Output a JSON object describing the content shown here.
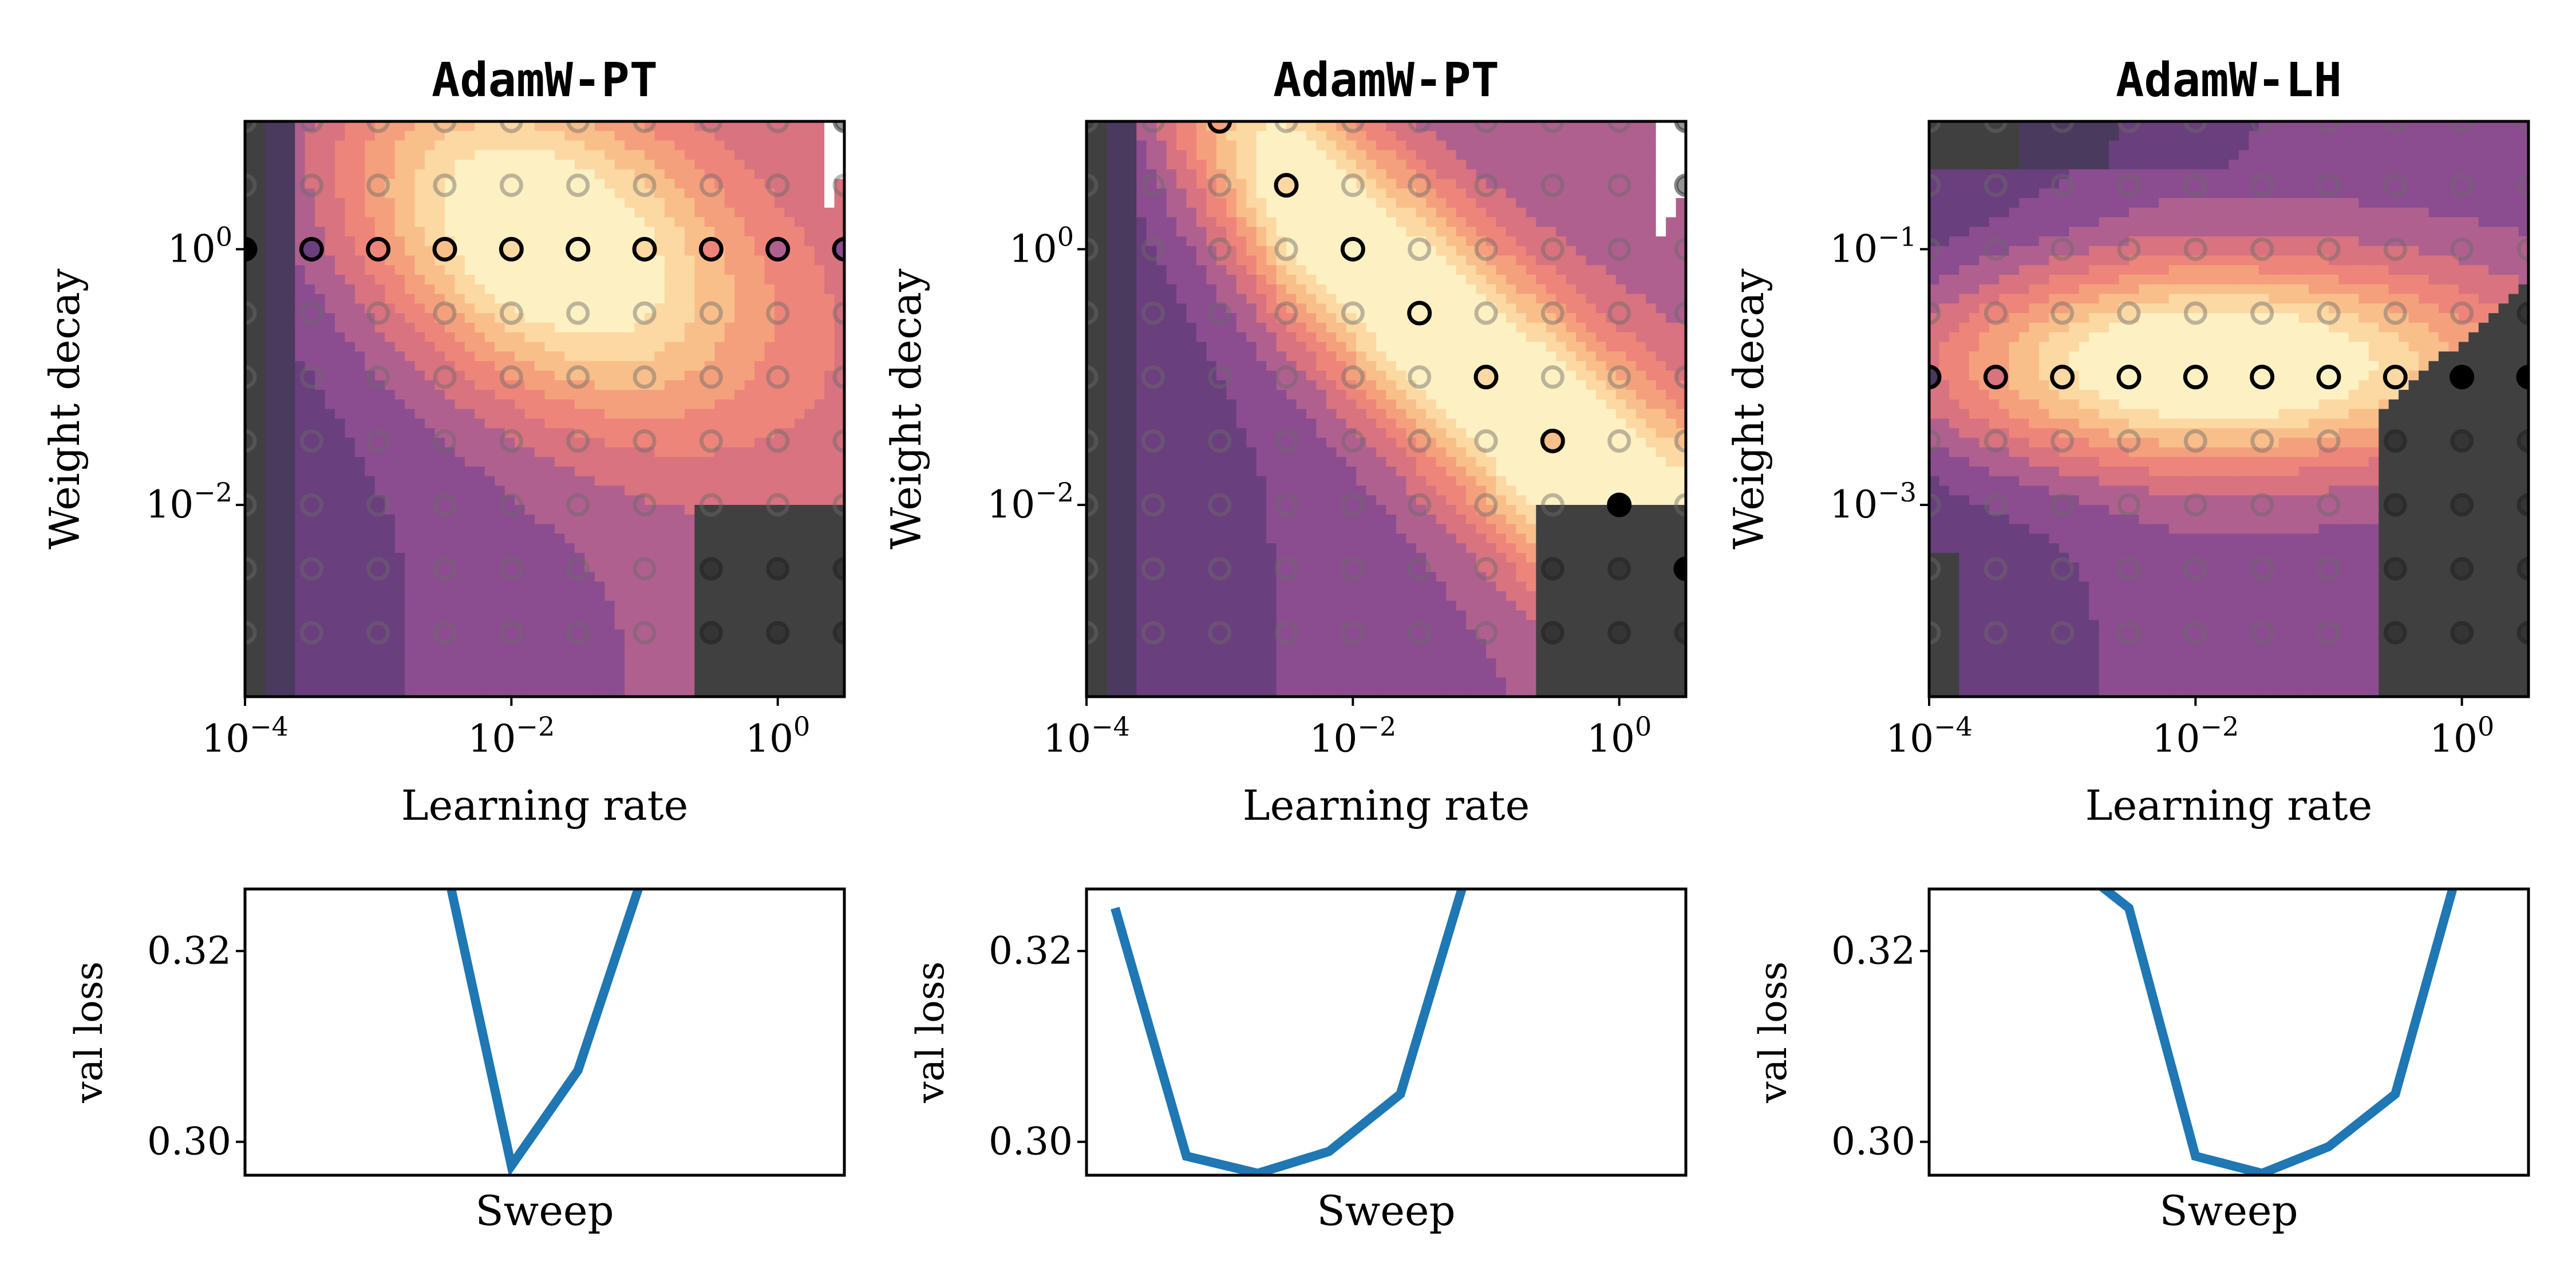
{
  "colors": {
    "line": "#1f77b4",
    "diverged": "#404040",
    "palette_magma_low_to_high": [
      "#404040",
      "#4a3a5e",
      "#6a3f7d",
      "#8b4d8f",
      "#b0608f",
      "#d8737f",
      "#ee857a",
      "#f5a07c",
      "#f9bf8a",
      "#fcd8a2",
      "#fdf0c2"
    ],
    "selected_ring": "#000000"
  },
  "chart_data": [
    {
      "type": "heatmap",
      "panel": "top-left",
      "title": "AdamW-PT",
      "xlabel": "Learning rate",
      "ylabel": "Weight decay",
      "xscale": "log",
      "yscale": "log",
      "xlim_log10": [
        -4,
        0.5
      ],
      "ylim_log10": [
        -3.5,
        1.0
      ],
      "xticks": [
        "10^{-4}",
        "10^{-2}",
        "10^{0}"
      ],
      "yticks": [
        "10^{-2}",
        "10^{0}"
      ],
      "grid_x_log10": [
        -4,
        -3.5,
        -3,
        -2.5,
        -2,
        -1.5,
        -1,
        -0.5,
        0,
        0.5
      ],
      "grid_y_log10": [
        -3,
        -2.5,
        -2,
        -1.5,
        -1,
        -0.5,
        0,
        0.5,
        1
      ],
      "diverged_region": "lower-right (lr >= ~10^{-0.6}, wd <= ~10^{-2}) and far-left column",
      "selected_points": [
        {
          "lr_log10": -4,
          "wd_log10": 0,
          "level": 0
        },
        {
          "lr_log10": -3.5,
          "wd_log10": 0,
          "level": 2
        },
        {
          "lr_log10": -3,
          "wd_log10": 0,
          "level": 6
        },
        {
          "lr_log10": -2.5,
          "wd_log10": 0,
          "level": 8
        },
        {
          "lr_log10": -2,
          "wd_log10": 0,
          "level": 9
        },
        {
          "lr_log10": -1.5,
          "wd_log10": 0,
          "level": 10
        },
        {
          "lr_log10": -1,
          "wd_log10": 0,
          "level": 9
        },
        {
          "lr_log10": -0.5,
          "wd_log10": 0,
          "level": 6
        },
        {
          "lr_log10": 0,
          "wd_log10": 0,
          "level": 4
        },
        {
          "lr_log10": 0.5,
          "wd_log10": 0,
          "level": 3
        }
      ]
    },
    {
      "type": "heatmap",
      "panel": "top-middle",
      "title": "AdamW-PT",
      "xlabel": "Learning rate",
      "ylabel": "Weight decay",
      "xscale": "log",
      "yscale": "log",
      "xlim_log10": [
        -4,
        0.5
      ],
      "ylim_log10": [
        -3.5,
        1.0
      ],
      "xticks": [
        "10^{-4}",
        "10^{-2}",
        "10^{0}"
      ],
      "yticks": [
        "10^{-2}",
        "10^{0}"
      ],
      "grid_x_log10": [
        -4,
        -3.5,
        -3,
        -2.5,
        -2,
        -1.5,
        -1,
        -0.5,
        0,
        0.5
      ],
      "grid_y_log10": [
        -3,
        -2.5,
        -2,
        -1.5,
        -1,
        -0.5,
        0,
        0.5,
        1
      ],
      "diverged_region": "lower-right (lr >= ~10^{-0.6}, wd <= ~10^{-2}) and far-left column",
      "selected_points": [
        {
          "lr_log10": -3,
          "wd_log10": 1,
          "level": 7
        },
        {
          "lr_log10": -2.5,
          "wd_log10": 0.5,
          "level": 9
        },
        {
          "lr_log10": -2,
          "wd_log10": 0,
          "level": 10
        },
        {
          "lr_log10": -1.5,
          "wd_log10": -0.5,
          "level": 10
        },
        {
          "lr_log10": -1,
          "wd_log10": -1,
          "level": 9
        },
        {
          "lr_log10": -0.5,
          "wd_log10": -1.5,
          "level": 8
        },
        {
          "lr_log10": 0,
          "wd_log10": -2,
          "level": 0
        },
        {
          "lr_log10": 0.5,
          "wd_log10": -2.5,
          "level": 0
        }
      ]
    },
    {
      "type": "heatmap",
      "panel": "top-right",
      "title": "AdamW-LH",
      "xlabel": "Learning rate",
      "ylabel": "Weight decay",
      "xscale": "log",
      "yscale": "log",
      "xlim_log10": [
        -4,
        0.5
      ],
      "ylim_log10": [
        -4.5,
        0.0
      ],
      "xticks": [
        "10^{-4}",
        "10^{-2}",
        "10^{0}"
      ],
      "yticks": [
        "10^{-3}",
        "10^{-1}"
      ],
      "grid_x_log10": [
        -4,
        -3.5,
        -3,
        -2.5,
        -2,
        -1.5,
        -1,
        -0.5,
        0,
        0.5
      ],
      "grid_y_log10": [
        -4,
        -3.5,
        -3,
        -2.5,
        -2,
        -1.5,
        -1,
        -0.5,
        0
      ],
      "diverged_region": "lower-right (lr >= ~10^{-0.6}, wd <= ~10^{-1.6}) and far-left corner",
      "selected_points": [
        {
          "lr_log10": -4,
          "wd_log10": -2,
          "level": 1
        },
        {
          "lr_log10": -3.5,
          "wd_log10": -2,
          "level": 5
        },
        {
          "lr_log10": -3,
          "wd_log10": -2,
          "level": 9
        },
        {
          "lr_log10": -2.5,
          "wd_log10": -2,
          "level": 10
        },
        {
          "lr_log10": -2,
          "wd_log10": -2,
          "level": 10
        },
        {
          "lr_log10": -1.5,
          "wd_log10": -2,
          "level": 10
        },
        {
          "lr_log10": -1,
          "wd_log10": -2,
          "level": 10
        },
        {
          "lr_log10": -0.5,
          "wd_log10": -2,
          "level": 9
        },
        {
          "lr_log10": 0,
          "wd_log10": -2,
          "level": 0
        },
        {
          "lr_log10": 0.5,
          "wd_log10": -2,
          "level": 0
        }
      ]
    },
    {
      "type": "line",
      "panel": "bottom-left",
      "xlabel": "Sweep",
      "ylabel": "val_loss",
      "ylabel_display": "val loss",
      "ylim": [
        0.2965,
        0.3265
      ],
      "yticks": [
        "0.30",
        "0.32"
      ],
      "x": [
        0,
        1,
        2,
        3,
        4,
        5,
        6,
        7,
        8,
        9
      ],
      "xlim": [
        0,
        9
      ],
      "values": [
        null,
        null,
        null,
        0.3296,
        0.2975,
        0.3075,
        0.3285,
        null,
        null,
        null
      ]
    },
    {
      "type": "line",
      "panel": "bottom-middle",
      "xlabel": "Sweep",
      "ylabel": "val_loss",
      "ylabel_display": "val loss",
      "ylim": [
        0.2965,
        0.3265
      ],
      "yticks": [
        "0.30",
        "0.32"
      ],
      "x": [
        0,
        1,
        2,
        3,
        4,
        5,
        6,
        7
      ],
      "xlim": [
        -0.4,
        8.0
      ],
      "values": [
        0.3245,
        0.2985,
        0.2967,
        0.299,
        0.305,
        0.33,
        null,
        null
      ]
    },
    {
      "type": "line",
      "panel": "bottom-right",
      "xlabel": "Sweep",
      "ylabel": "val_loss",
      "ylabel_display": "val loss",
      "ylim": [
        0.2965,
        0.3265
      ],
      "yticks": [
        "0.30",
        "0.32"
      ],
      "x": [
        0,
        1,
        2,
        3,
        4,
        5,
        6,
        7,
        8,
        9
      ],
      "xlim": [
        0,
        9
      ],
      "values": [
        null,
        null,
        0.33,
        0.3245,
        0.2985,
        0.2967,
        0.2995,
        0.305,
        0.33,
        null
      ]
    }
  ]
}
